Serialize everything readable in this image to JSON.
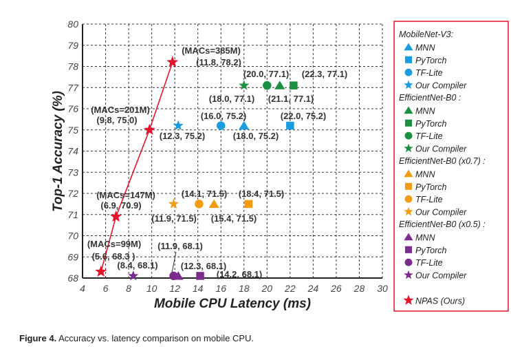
{
  "chart_data": {
    "type": "scatter",
    "xlabel": "Mobile CPU Latency (ms)",
    "ylabel": "Top-1 Accuracy (%)",
    "xlim": [
      4,
      30
    ],
    "ylim": [
      68,
      80
    ],
    "xticks": [
      "4",
      "6",
      "8",
      "10",
      "12",
      "14",
      "16",
      "18",
      "20",
      "22",
      "24",
      "26",
      "28",
      "30"
    ],
    "yticks": [
      "68",
      "69",
      "70",
      "71",
      "72",
      "73",
      "74",
      "75",
      "76",
      "77",
      "78",
      "79",
      "80"
    ],
    "grid": true,
    "legend_placement": "right-outside",
    "colors": {
      "blue": "#1a9de0",
      "green": "#1b9140",
      "orange": "#f39c12",
      "purple": "#7b2d8e",
      "red": "#e8132b"
    },
    "groups": [
      {
        "name": "MobileNet-V3:",
        "color": "#1a9de0",
        "points": [
          {
            "framework": "MNN",
            "marker": "triangle",
            "x": 18.0,
            "y": 75.2
          },
          {
            "framework": "PyTorch",
            "marker": "square",
            "x": 22.0,
            "y": 75.2
          },
          {
            "framework": "TF-Lite",
            "marker": "circle",
            "x": 16.0,
            "y": 75.2
          },
          {
            "framework": "Our Compiler",
            "marker": "star",
            "x": 12.3,
            "y": 75.2
          }
        ]
      },
      {
        "name": "EfficientNet-B0 :",
        "color": "#1b9140",
        "points": [
          {
            "framework": "MNN",
            "marker": "triangle",
            "x": 21.1,
            "y": 77.1
          },
          {
            "framework": "PyTorch",
            "marker": "square",
            "x": 22.3,
            "y": 77.1
          },
          {
            "framework": "TF-Lite",
            "marker": "circle",
            "x": 20.0,
            "y": 77.1
          },
          {
            "framework": "Our Compiler",
            "marker": "star",
            "x": 18.0,
            "y": 77.1
          }
        ]
      },
      {
        "name": "EfficientNet-B0 (x0.7) :",
        "color": "#f39c12",
        "points": [
          {
            "framework": "MNN",
            "marker": "triangle",
            "x": 15.4,
            "y": 71.5
          },
          {
            "framework": "PyTorch",
            "marker": "square",
            "x": 18.4,
            "y": 71.5
          },
          {
            "framework": "TF-Lite",
            "marker": "circle",
            "x": 14.1,
            "y": 71.5
          },
          {
            "framework": "Our Compiler",
            "marker": "star",
            "x": 11.9,
            "y": 71.5
          }
        ]
      },
      {
        "name": "EfficientNet-B0 (x0.5) :",
        "color": "#7b2d8e",
        "points": [
          {
            "framework": "MNN",
            "marker": "triangle",
            "x": 12.3,
            "y": 68.1
          },
          {
            "framework": "PyTorch",
            "marker": "square",
            "x": 14.2,
            "y": 68.1
          },
          {
            "framework": "TF-Lite",
            "marker": "circle",
            "x": 11.9,
            "y": 68.1
          },
          {
            "framework": "Our Compiler",
            "marker": "star",
            "x": 8.4,
            "y": 68.1
          }
        ]
      }
    ],
    "npas": {
      "name": "NPAS (Ours)",
      "color": "#e8132b",
      "marker": "star",
      "points": [
        {
          "x": 5.6,
          "y": 68.3,
          "macs": "99M"
        },
        {
          "x": 6.9,
          "y": 70.9,
          "macs": "147M"
        },
        {
          "x": 9.8,
          "y": 75.0,
          "macs": "201M"
        },
        {
          "x": 11.8,
          "y": 78.2,
          "macs": "385M"
        }
      ]
    },
    "annotations": [
      "(MACs=385M)",
      "(11.8, 78.2)",
      "(20.0, 77.1)",
      "(22.3, 77.1)",
      "(18.0, 77.1)",
      "(21.1, 77.1)",
      "(MACs=201M)",
      "(9.8, 75.0)",
      "(16.0, 75.2)",
      "(22.0, 75.2)",
      "(12.3, 75.2)",
      "(18.0, 75.2)",
      "(14.1, 71.5)",
      "(18.4, 71.5)",
      "(MACs=147M)",
      "(6.9, 70.9)",
      "(11.9, 71.5)",
      "(15.4, 71.5)",
      "(MACs=99M)",
      "(11.9, 68.1)",
      "(5.6, 68.3 )",
      "(8.4, 68.1)",
      "(12.3, 68.1)",
      "(14.2, 68.1)"
    ]
  },
  "caption": {
    "label": "Figure 4.",
    "text": " Accuracy vs. latency comparison on mobile CPU."
  }
}
